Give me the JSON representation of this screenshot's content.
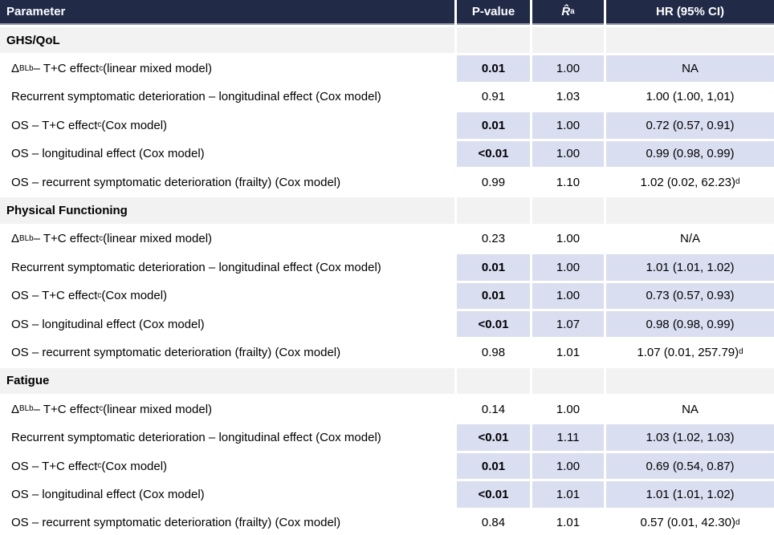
{
  "colors": {
    "header_bg": "#212b48",
    "header_text": "#ffffff",
    "section_bg": "#f2f2f2",
    "highlight_bg": "#d9def1",
    "body_text": "#000000"
  },
  "table": {
    "columns": [
      {
        "key": "parameter",
        "label": "Parameter"
      },
      {
        "key": "p_value",
        "label": "P-value"
      },
      {
        "key": "r_hat",
        "label": "*R̂*^a^"
      },
      {
        "key": "hr_ci",
        "label": "HR (95% CI)"
      }
    ],
    "sections": [
      {
        "title": "GHS/QoL",
        "rows": [
          {
            "label": "Δ~BL~^b^ – T+C effect^c^ (linear mixed model)",
            "p": "0.01",
            "r": "1.00",
            "hr": "NA",
            "sig": true
          },
          {
            "label": "Recurrent symptomatic deterioration – longitudinal effect (Cox model)",
            "p": "0.91",
            "r": "1.03",
            "hr": "1.00 (1.00, 1,01)",
            "sig": false
          },
          {
            "label": "OS – T+C effect^c^ (Cox model)",
            "p": "0.01",
            "r": "1.00",
            "hr": "0.72 (0.57, 0.91)",
            "sig": true
          },
          {
            "label": "OS – longitudinal effect (Cox model)",
            "p": "<0.01",
            "r": "1.00",
            "hr": "0.99 (0.98, 0.99)",
            "sig": true
          },
          {
            "label": "OS – recurrent symptomatic deterioration (frailty) (Cox model)",
            "p": "0.99",
            "r": "1.10",
            "hr": "1.02 (0.02, 62.23)^d^",
            "sig": false
          }
        ]
      },
      {
        "title": "Physical Functioning",
        "rows": [
          {
            "label": "Δ~BL~^b^  – T+C effect^c^ (linear mixed model)",
            "p": "0.23",
            "r": "1.00",
            "hr": "N/A",
            "sig": false
          },
          {
            "label": "Recurrent symptomatic deterioration – longitudinal effect (Cox model)",
            "p": "0.01",
            "r": "1.00",
            "hr": "1.01 (1.01, 1.02)",
            "sig": true
          },
          {
            "label": "OS – T+C effect^c^ (Cox model)",
            "p": "0.01",
            "r": "1.00",
            "hr": "0.73 (0.57, 0.93)",
            "sig": true
          },
          {
            "label": "OS – longitudinal effect (Cox model)",
            "p": "<0.01",
            "r": "1.07",
            "hr": "0.98 (0.98, 0.99)",
            "sig": true
          },
          {
            "label": "OS – recurrent symptomatic deterioration (frailty) (Cox model)",
            "p": "0.98",
            "r": "1.01",
            "hr": "1.07 (0.01, 257.79)^d^",
            "sig": false
          }
        ]
      },
      {
        "title": "Fatigue",
        "rows": [
          {
            "label": "Δ~BL~^b^ – T+C effect^c^ (linear mixed model)",
            "p": "0.14",
            "r": "1.00",
            "hr": "NA",
            "sig": false
          },
          {
            "label": "Recurrent symptomatic deterioration – longitudinal effect (Cox model)",
            "p": "<0.01",
            "r": "1.11",
            "hr": "1.03 (1.02, 1.03)",
            "sig": true
          },
          {
            "label": "OS – T+C effect^c^ (Cox model)",
            "p": "0.01",
            "r": "1.00",
            "hr": "0.69 (0.54, 0.87)",
            "sig": true
          },
          {
            "label": "OS – longitudinal effect (Cox model)",
            "p": "<0.01",
            "r": "1.01",
            "hr": "1.01 (1.01, 1.02)",
            "sig": true
          },
          {
            "label": "OS – recurrent symptomatic deterioration (frailty) (Cox model)",
            "p": "0.84",
            "r": "1.01",
            "hr": "0.57 (0.01, 42.30)^d^",
            "sig": false
          }
        ]
      }
    ]
  }
}
